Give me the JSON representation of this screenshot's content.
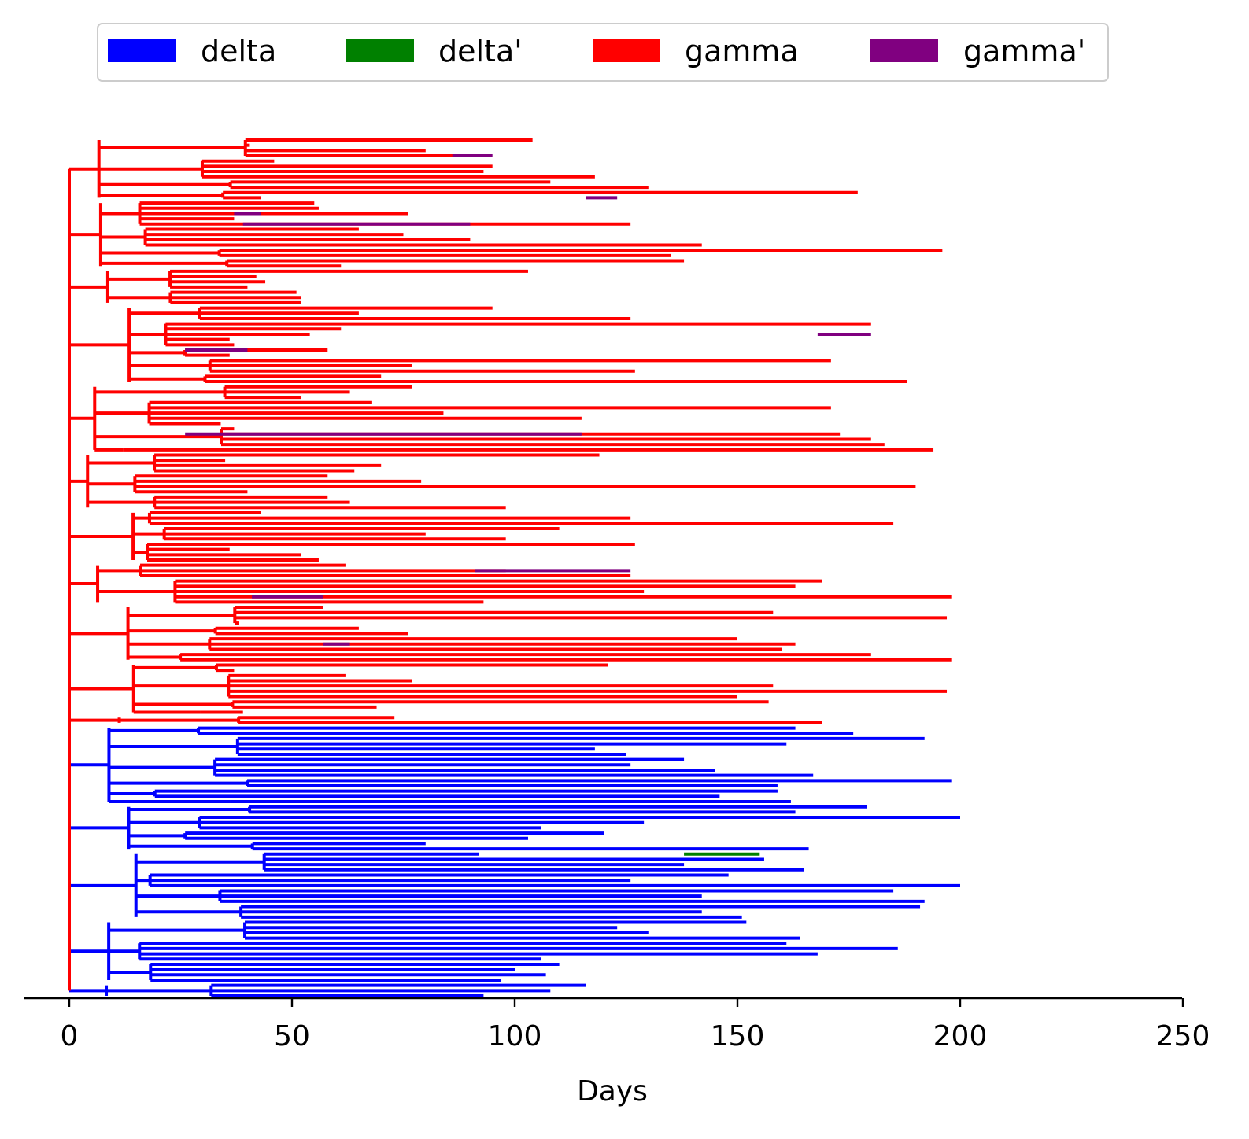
{
  "chart_data": {
    "type": "tree",
    "xlabel": "Days",
    "ylabel": "",
    "title": "",
    "xlim": [
      -10,
      250
    ],
    "xticks": [
      0,
      50,
      100,
      150,
      200,
      250
    ],
    "grid": false,
    "legend_placement": "top-center",
    "legend": [
      {
        "name": "delta",
        "color": "#0000ff"
      },
      {
        "name": "delta'",
        "color": "#008000"
      },
      {
        "name": "gamma",
        "color": "#ff0000"
      },
      {
        "name": "gamma'",
        "color": "#800080"
      }
    ],
    "series": [
      {
        "name": "gamma",
        "color": "#ff0000",
        "leaf_count": 112,
        "root_x": 0,
        "leaf_end_days": [
          104,
          36,
          80,
          88,
          46,
          95,
          93,
          118,
          108,
          130,
          177,
          43,
          55,
          56,
          76,
          37,
          126,
          65,
          75,
          90,
          142,
          196,
          135,
          138,
          61,
          103,
          42,
          44,
          40,
          51,
          52,
          52,
          95,
          65,
          126,
          180,
          61,
          54,
          36,
          37,
          58,
          36,
          171,
          77,
          127,
          70,
          188,
          77,
          63,
          52,
          68,
          171,
          84,
          115,
          34,
          37,
          173,
          180,
          183,
          194,
          119,
          35,
          70,
          64,
          58,
          79,
          190,
          40,
          58,
          63,
          98,
          43,
          126,
          185,
          110,
          80,
          98,
          127,
          36,
          52,
          56,
          62,
          98,
          126,
          169,
          163,
          129,
          198,
          93,
          57,
          158,
          197,
          35,
          65,
          76,
          150,
          163,
          160,
          180,
          198,
          121,
          37,
          62,
          77,
          158,
          197,
          150,
          157,
          69,
          39,
          73,
          169
        ]
      },
      {
        "name": "gamma'",
        "color": "#800080",
        "segments_days": [
          [
            86,
            95
          ],
          [
            116,
            123
          ],
          [
            37,
            43
          ],
          [
            39,
            90
          ],
          [
            168,
            180
          ],
          [
            26,
            40
          ],
          [
            26,
            115
          ],
          [
            91,
            126
          ],
          [
            41,
            57
          ],
          [
            57,
            63
          ]
        ]
      },
      {
        "name": "delta",
        "color": "#0000ff",
        "leaf_count": 52,
        "root_x": 0,
        "leaf_end_days": [
          163,
          176,
          192,
          161,
          118,
          125,
          138,
          126,
          145,
          167,
          198,
          159,
          159,
          146,
          162,
          179,
          163,
          200,
          129,
          106,
          120,
          103,
          80,
          166,
          92,
          156,
          138,
          165,
          148,
          126,
          200,
          185,
          142,
          192,
          191,
          142,
          151,
          152,
          123,
          130,
          164,
          161,
          186,
          168,
          106,
          110,
          100,
          107,
          97,
          116,
          108,
          93
        ]
      },
      {
        "name": "delta'",
        "color": "#008000",
        "segments_days": [
          [
            138,
            155
          ]
        ]
      }
    ]
  }
}
